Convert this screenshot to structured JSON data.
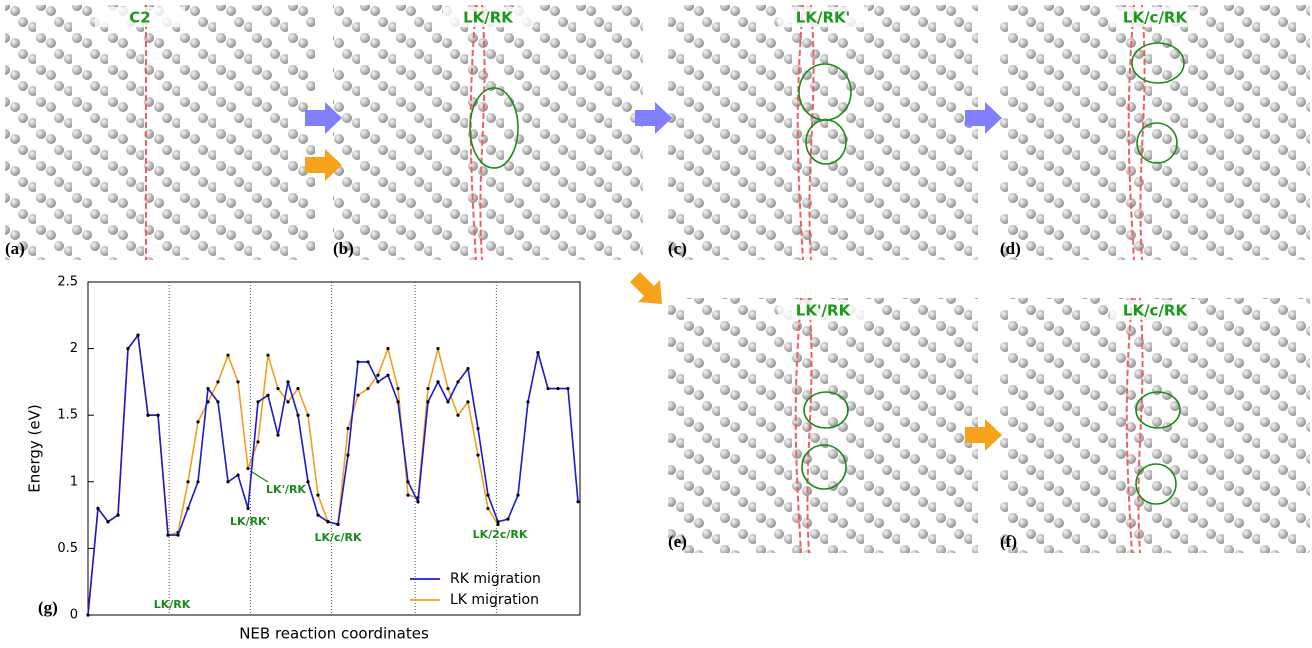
{
  "panels": [
    {
      "label": "(a)",
      "title": "C2"
    },
    {
      "label": "(b)",
      "title": "LK/RK"
    },
    {
      "label": "(c)",
      "title": "LK/RK'"
    },
    {
      "label": "(d)",
      "title": "LK/c/RK"
    },
    {
      "label": "(e)",
      "title": "LK'/RK"
    },
    {
      "label": "(f)",
      "title": "LK/c/RK"
    }
  ],
  "chart_data": {
    "type": "line",
    "panel_label": "(g)",
    "xlabel": "NEB reaction coordinates",
    "ylabel": "Energy (eV)",
    "ylim": [
      0,
      2.5
    ],
    "yticks": [
      0,
      0.5,
      1,
      1.5,
      2,
      2.5
    ],
    "legend": "lower right",
    "series": [
      {
        "name": "RK migration",
        "color": "#1a1ad0",
        "values": [
          0,
          0.8,
          0.7,
          0.75,
          2.0,
          2.1,
          1.5,
          1.5,
          0.6,
          0.6,
          0.8,
          1.0,
          1.7,
          1.6,
          1.0,
          1.05,
          0.8,
          1.6,
          1.65,
          1.35,
          1.75,
          1.5,
          1.0,
          0.75,
          0.7,
          0.68,
          1.2,
          1.9,
          1.9,
          1.75,
          1.8,
          1.6,
          1.0,
          0.85,
          1.6,
          1.75,
          1.6,
          1.75,
          1.85,
          1.4,
          0.9,
          0.7,
          0.72,
          0.9,
          1.6,
          1.97,
          1.7,
          1.7,
          1.7,
          0.85
        ]
      },
      {
        "name": "LK migration",
        "color": "#f0a020",
        "values": [
          0,
          0.8,
          0.7,
          0.75,
          2.0,
          2.1,
          1.5,
          1.5,
          0.6,
          0.62,
          1.0,
          1.45,
          1.6,
          1.75,
          1.95,
          1.75,
          1.1,
          1.3,
          1.95,
          1.7,
          1.6,
          1.7,
          1.5,
          0.9,
          0.7,
          0.68,
          1.4,
          1.65,
          1.7,
          1.8,
          2.0,
          1.7,
          0.9,
          0.88,
          1.7,
          2.0,
          1.7,
          1.5,
          1.6,
          1.2,
          0.8,
          0.68,
          null,
          null,
          null,
          null,
          null,
          null,
          null,
          null
        ]
      }
    ],
    "annotations": [
      "LK/RK",
      "LK/RK'",
      "LK'/RK",
      "LK/c/RK",
      "LK/2c/RK"
    ]
  }
}
